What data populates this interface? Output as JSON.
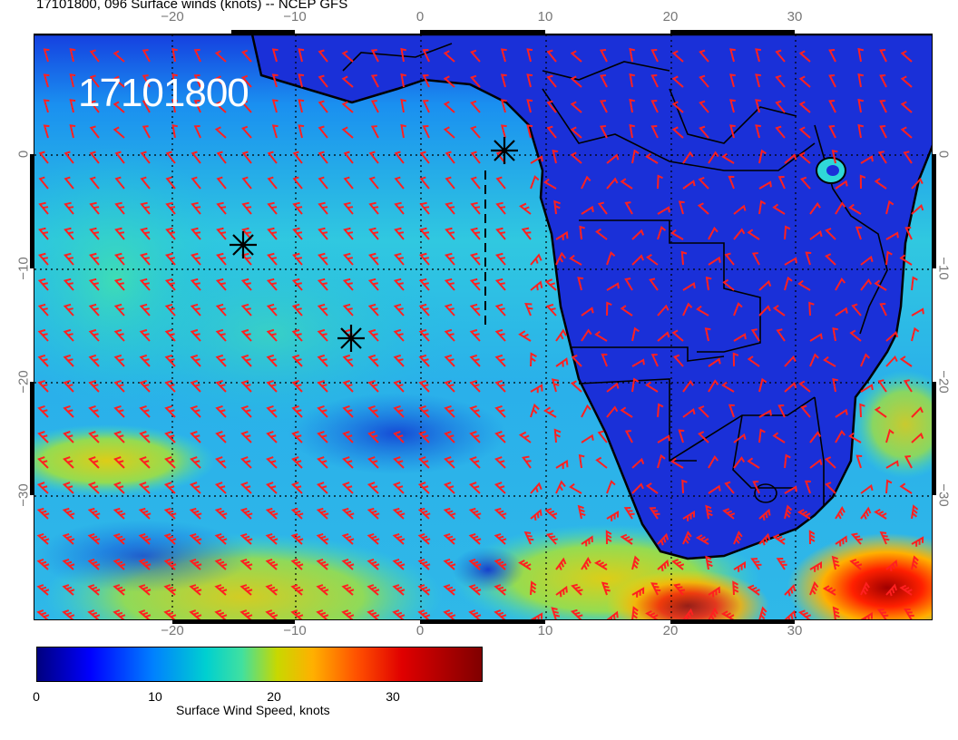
{
  "title": "17101800, 096 Surface winds (knots) -- NCEP GFS",
  "date_stamp": "17101800",
  "lon_ticks_top": [
    "−20",
    "−10",
    "0",
    "10",
    "20",
    "30"
  ],
  "lon_ticks_bottom": [
    "−20",
    "−10",
    "0",
    "10",
    "20",
    "30"
  ],
  "lat_ticks_left": [
    "0",
    "−10",
    "−20",
    "−30"
  ],
  "lat_ticks_right": [
    "0",
    "−10",
    "−20",
    "−30"
  ],
  "colorbar": {
    "label": "Surface Wind Speed, knots",
    "ticks": [
      "0",
      "10",
      "20",
      "30"
    ]
  },
  "colors": {
    "ocean_background": "#1f8fe8",
    "land_background": "#1a2fd8",
    "barb_color": "#ff2020",
    "coast_color": "#000000",
    "marker_color": "#000000"
  },
  "markers": [
    {
      "icon": "asterisk-marker"
    },
    {
      "icon": "asterisk-marker"
    },
    {
      "icon": "asterisk-marker"
    }
  ]
}
